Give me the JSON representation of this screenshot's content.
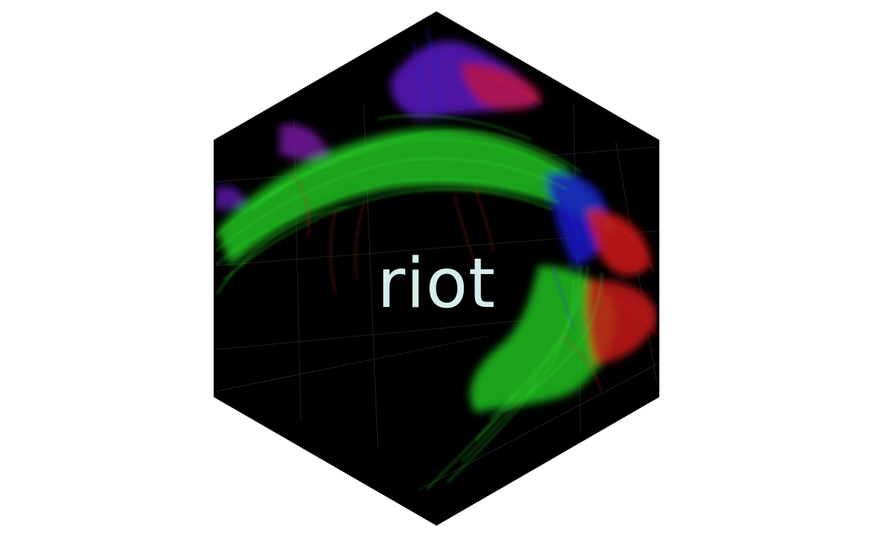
{
  "logo": {
    "title": "riot",
    "icon": "brain-tractography-hex-icon"
  },
  "colors": {
    "page_background": "#ffffff",
    "hex_background": "#000000",
    "title_text": "#d6ecec",
    "fiber_green": "#22d422",
    "fiber_red": "#e01818",
    "fiber_blue": "#1a1ad8",
    "fiber_purple": "#6a1aa8"
  }
}
